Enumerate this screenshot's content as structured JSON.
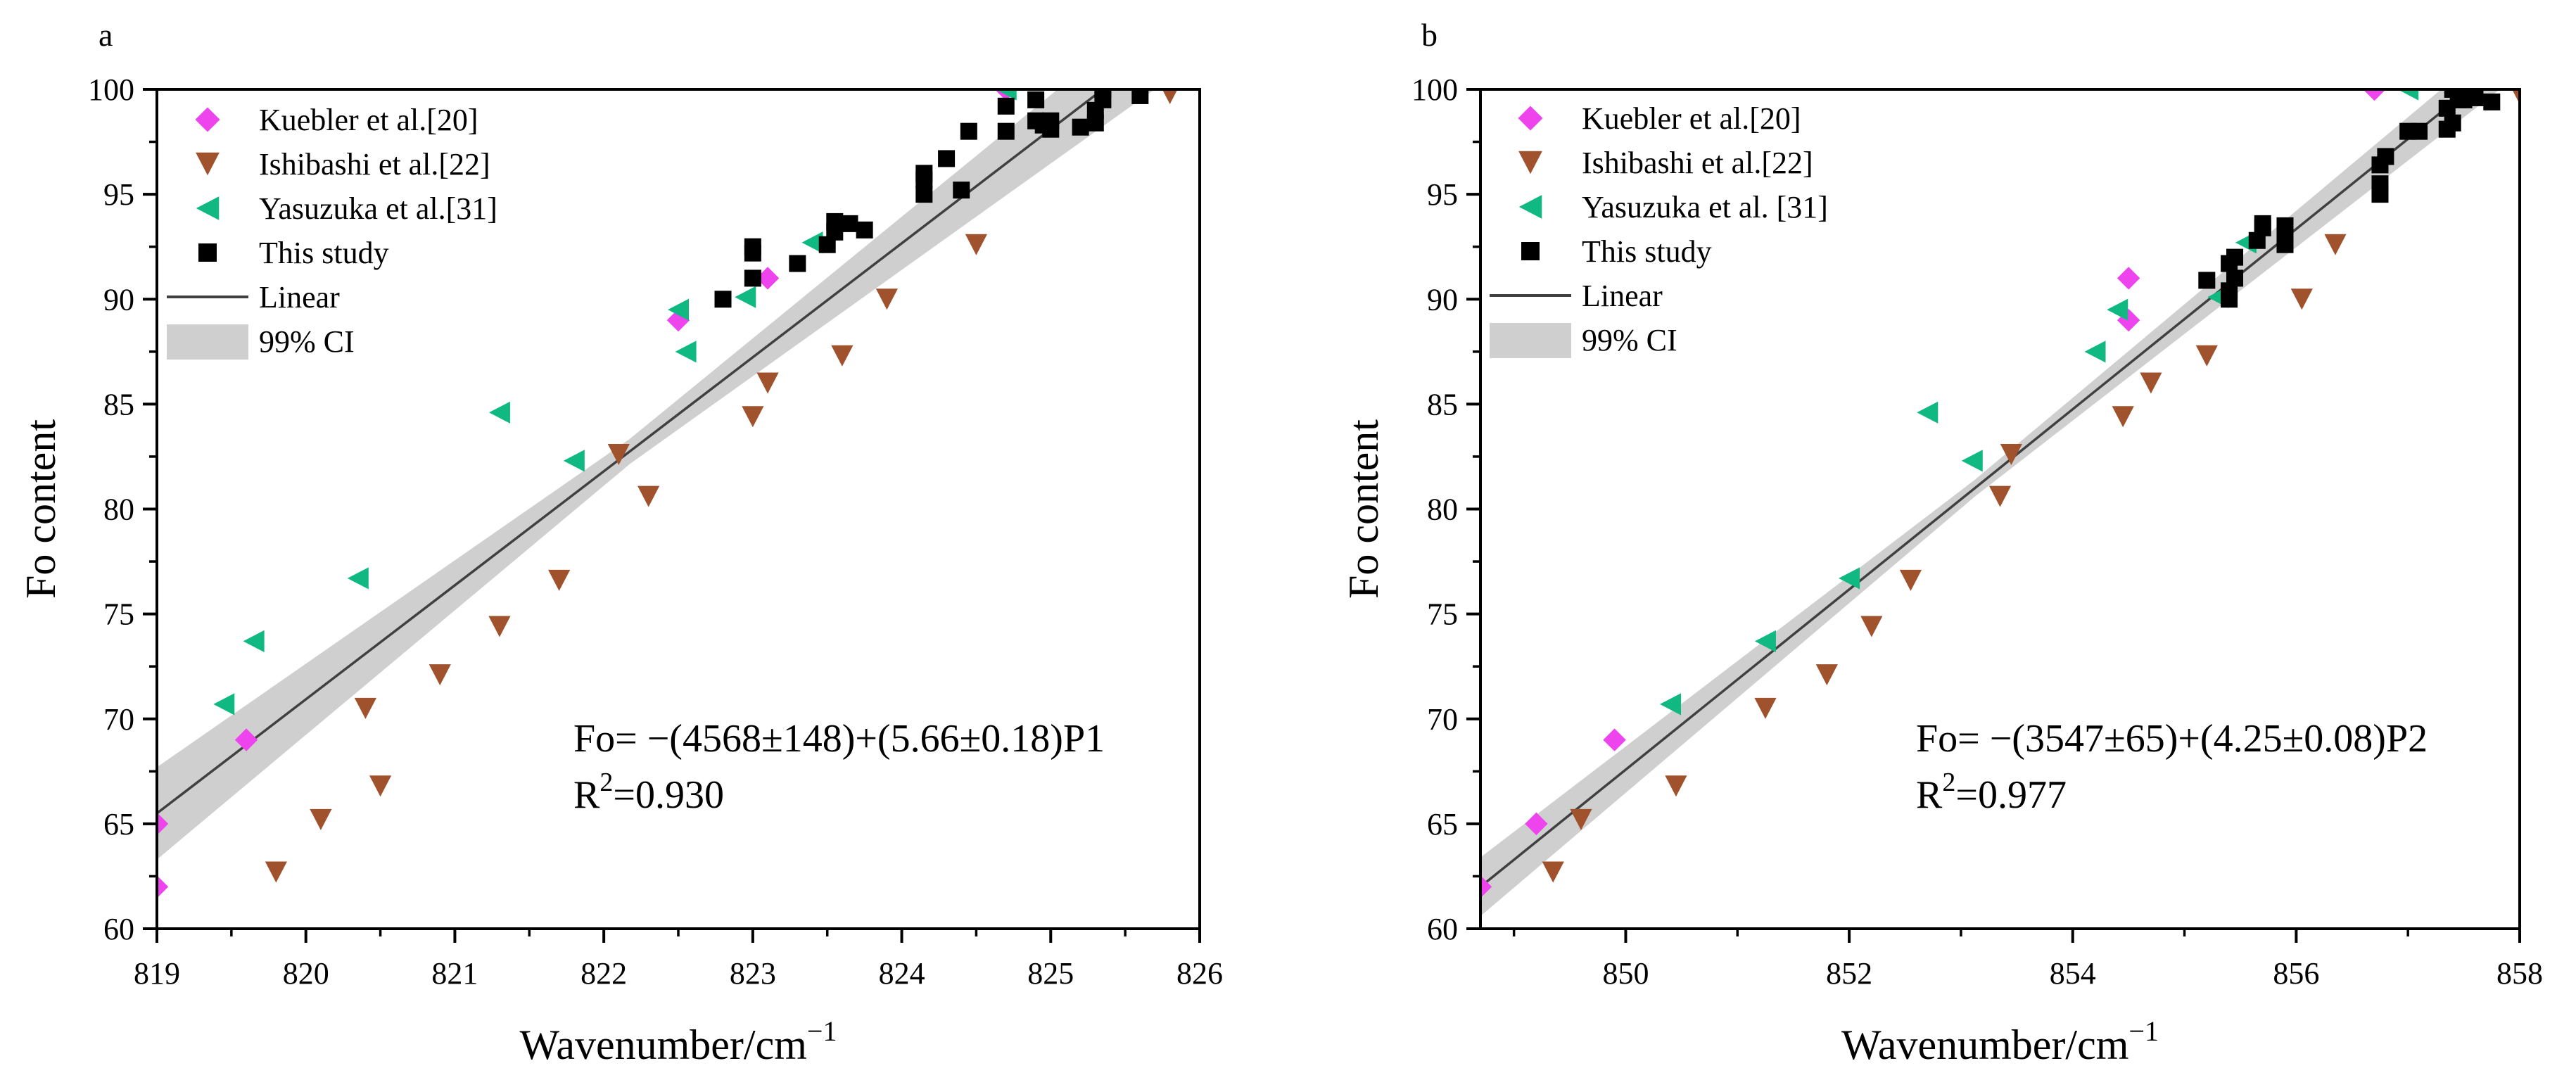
{
  "chart_data": [
    {
      "type": "scatter",
      "panel_label": "a",
      "xlabel": "Wavenumber/cm",
      "xlabel_sup": "−1",
      "ylabel": "Fo content",
      "xlim": [
        819,
        826
      ],
      "ylim": [
        60,
        100
      ],
      "xticks": [
        819,
        820,
        821,
        822,
        823,
        824,
        825,
        826
      ],
      "yticks": [
        60,
        65,
        70,
        75,
        80,
        85,
        90,
        95,
        100
      ],
      "legend": [
        {
          "label": "Kuebler et al.[20]",
          "series": "kuebler"
        },
        {
          "label": "Ishibashi et al.[22]",
          "series": "ishibashi"
        },
        {
          "label": "Yasuzuka et al.[31]",
          "series": "yasuzuka"
        },
        {
          "label": "This study",
          "series": "this_study"
        },
        {
          "label": "Linear",
          "kind": "line"
        },
        {
          "label": "99% CI",
          "kind": "band"
        }
      ],
      "equation": "Fo= −(4568±148)+(5.66±0.18)P1",
      "r2_prefix": "R",
      "r2_sup": "2",
      "r2_value": "=0.930",
      "fit": {
        "x": [
          819,
          825.35
        ],
        "y": [
          65.5,
          100
        ]
      },
      "ci_halfwidth": [
        2.2,
        0.6,
        2.0
      ],
      "series": [
        {
          "name": "kuebler",
          "marker": "diamond",
          "color": "#ee44ee",
          "points": [
            [
              819.0,
              65
            ],
            [
              819.0,
              62
            ],
            [
              819.6,
              69
            ],
            [
              822.5,
              89
            ],
            [
              823.1,
              91
            ],
            [
              824.7,
              100
            ]
          ]
        },
        {
          "name": "ishibashi",
          "marker": "triangle-down",
          "color": "#a0522d",
          "points": [
            [
              819.8,
              62.7
            ],
            [
              820.1,
              65.2
            ],
            [
              820.4,
              70.5
            ],
            [
              820.5,
              66.8
            ],
            [
              820.9,
              72.1
            ],
            [
              821.3,
              74.4
            ],
            [
              821.7,
              76.6
            ],
            [
              822.1,
              82.6
            ],
            [
              822.3,
              80.6
            ],
            [
              823.0,
              84.4
            ],
            [
              823.1,
              86.0
            ],
            [
              823.6,
              87.3
            ],
            [
              823.9,
              90.0
            ],
            [
              824.5,
              92.6
            ],
            [
              825.8,
              99.8
            ]
          ]
        },
        {
          "name": "yasuzuka",
          "marker": "triangle-left",
          "color": "#10b981",
          "points": [
            [
              819.45,
              70.7
            ],
            [
              819.65,
              73.7
            ],
            [
              820.35,
              76.7
            ],
            [
              821.3,
              84.6
            ],
            [
              821.8,
              82.3
            ],
            [
              822.5,
              89.5
            ],
            [
              822.55,
              87.5
            ],
            [
              822.95,
              90.1
            ],
            [
              823.4,
              92.7
            ],
            [
              824.7,
              100
            ]
          ]
        },
        {
          "name": "this_study",
          "marker": "square",
          "color": "#000000",
          "points": [
            [
              822.8,
              90.0
            ],
            [
              823.0,
              91.0
            ],
            [
              823.0,
              92.2
            ],
            [
              823.0,
              92.5
            ],
            [
              823.3,
              91.7
            ],
            [
              823.5,
              92.6
            ],
            [
              823.55,
              93.2
            ],
            [
              823.55,
              93.7
            ],
            [
              823.65,
              93.6
            ],
            [
              823.75,
              93.3
            ],
            [
              824.15,
              95.0
            ],
            [
              824.15,
              95.7
            ],
            [
              824.15,
              96.0
            ],
            [
              824.3,
              96.7
            ],
            [
              824.4,
              95.2
            ],
            [
              824.45,
              98.0
            ],
            [
              824.7,
              98.0
            ],
            [
              824.7,
              99.2
            ],
            [
              824.9,
              98.5
            ],
            [
              824.9,
              99.5
            ],
            [
              824.95,
              98.3
            ],
            [
              825.0,
              98.1
            ],
            [
              825.0,
              98.5
            ],
            [
              825.2,
              98.2
            ],
            [
              825.3,
              98.4
            ],
            [
              825.3,
              99.0
            ],
            [
              825.35,
              99.5
            ],
            [
              825.35,
              100
            ],
            [
              825.6,
              99.7
            ]
          ]
        }
      ]
    },
    {
      "type": "scatter",
      "panel_label": "b",
      "xlabel": "Wavenumber/cm",
      "xlabel_sup": "−1",
      "ylabel": "Fo content",
      "xlim": [
        848.7,
        858
      ],
      "ylim": [
        60,
        100
      ],
      "xticks": [
        850,
        852,
        854,
        856,
        858
      ],
      "yticks": [
        60,
        65,
        70,
        75,
        80,
        85,
        90,
        95,
        100
      ],
      "legend": [
        {
          "label": "Kuebler et al.[20]",
          "series": "kuebler"
        },
        {
          "label": "Ishibashi et al.[22]",
          "series": "ishibashi"
        },
        {
          "label": "Yasuzuka et al. [31]",
          "series": "yasuzuka"
        },
        {
          "label": "This study",
          "series": "this_study"
        },
        {
          "label": "Linear",
          "kind": "line"
        },
        {
          "label": "99% CI",
          "kind": "band"
        }
      ],
      "equation": "Fo= −(3547±65)+(4.25±0.08)P2",
      "r2_prefix": "R",
      "r2_sup": "2",
      "r2_value": "=0.977",
      "fit": {
        "x": [
          848.7,
          857.55
        ],
        "y": [
          62.0,
          100
        ]
      },
      "ci_halfwidth": [
        1.4,
        0.4,
        1.2
      ],
      "series": [
        {
          "name": "kuebler",
          "marker": "diamond",
          "color": "#ee44ee",
          "points": [
            [
              848.7,
              62
            ],
            [
              849.2,
              65
            ],
            [
              849.9,
              69
            ],
            [
              854.5,
              89
            ],
            [
              854.5,
              91
            ],
            [
              856.7,
              100
            ]
          ]
        },
        {
          "name": "ishibashi",
          "marker": "triangle-down",
          "color": "#a0522d",
          "points": [
            [
              849.35,
              62.7
            ],
            [
              849.6,
              65.2
            ],
            [
              850.45,
              66.8
            ],
            [
              851.25,
              70.5
            ],
            [
              851.8,
              72.1
            ],
            [
              852.2,
              74.4
            ],
            [
              852.55,
              76.6
            ],
            [
              853.45,
              82.6
            ],
            [
              853.35,
              80.6
            ],
            [
              854.45,
              84.4
            ],
            [
              854.7,
              86.0
            ],
            [
              855.2,
              87.3
            ],
            [
              856.05,
              90.0
            ],
            [
              856.35,
              92.6
            ],
            [
              858.0,
              99.8
            ]
          ]
        },
        {
          "name": "yasuzuka",
          "marker": "triangle-left",
          "color": "#10b981",
          "points": [
            [
              850.4,
              70.7
            ],
            [
              851.25,
              73.7
            ],
            [
              852.0,
              76.7
            ],
            [
              852.7,
              84.6
            ],
            [
              853.1,
              82.3
            ],
            [
              854.2,
              87.5
            ],
            [
              854.4,
              89.5
            ],
            [
              855.3,
              90.1
            ],
            [
              855.55,
              92.7
            ],
            [
              857.0,
              100
            ]
          ]
        },
        {
          "name": "this_study",
          "marker": "square",
          "color": "#000000",
          "points": [
            [
              855.2,
              90.9
            ],
            [
              855.4,
              90.0
            ],
            [
              855.4,
              90.4
            ],
            [
              855.45,
              91.0
            ],
            [
              855.4,
              91.7
            ],
            [
              855.45,
              92.0
            ],
            [
              855.65,
              92.8
            ],
            [
              855.7,
              93.4
            ],
            [
              855.7,
              93.6
            ],
            [
              855.9,
              92.6
            ],
            [
              855.9,
              93.2
            ],
            [
              855.9,
              93.5
            ],
            [
              856.75,
              95.0
            ],
            [
              856.75,
              95.5
            ],
            [
              856.75,
              96.4
            ],
            [
              856.8,
              96.8
            ],
            [
              857.0,
              98.0
            ],
            [
              857.1,
              98.0
            ],
            [
              857.35,
              98.1
            ],
            [
              857.35,
              99.1
            ],
            [
              857.4,
              98.4
            ],
            [
              857.45,
              99.5
            ],
            [
              857.5,
              99.5
            ],
            [
              857.55,
              99.8
            ],
            [
              857.6,
              99.6
            ],
            [
              857.75,
              99.4
            ],
            [
              857.4,
              100
            ]
          ]
        }
      ]
    }
  ]
}
